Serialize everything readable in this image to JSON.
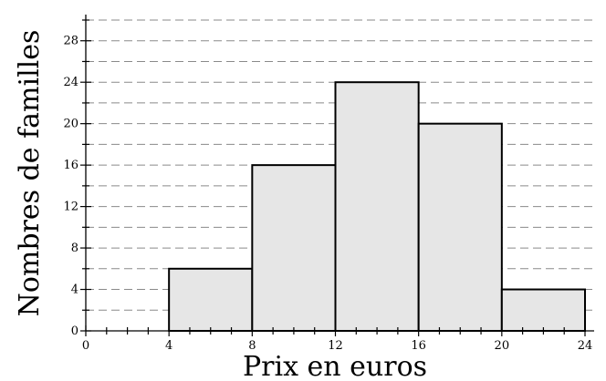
{
  "chart_data": {
    "type": "bar",
    "subtype": "histogram",
    "title": "",
    "xlabel": "Prix en euros",
    "ylabel": "Nombres de familles",
    "bins": [
      [
        4,
        8
      ],
      [
        8,
        12
      ],
      [
        12,
        16
      ],
      [
        16,
        20
      ],
      [
        20,
        24
      ]
    ],
    "values": [
      6,
      16,
      24,
      20,
      4
    ],
    "xlim": [
      0,
      24
    ],
    "ylim": [
      0,
      30
    ],
    "x_ticks": [
      0,
      4,
      8,
      12,
      16,
      20,
      24
    ],
    "y_ticks": [
      0,
      4,
      8,
      12,
      16,
      20,
      24,
      28
    ],
    "y_grid_step": 2,
    "grid": "horizontal dashed",
    "bar_fill": "#e6e6e6",
    "bar_edge": "#000000",
    "grid_color": "#8a8a8a"
  }
}
